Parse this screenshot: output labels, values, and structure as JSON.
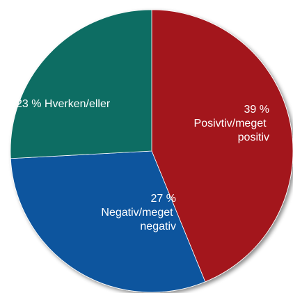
{
  "chart_data": {
    "type": "pie",
    "categories": [
      "Posivtiv/meget positiv",
      "Negativ/meget negativ",
      "Hverken/eller"
    ],
    "values": [
      39,
      27,
      23
    ],
    "value_labels": [
      "39 %",
      "27 %",
      "23 %"
    ],
    "colors": [
      "#a3161f",
      "#0b559e",
      "#0e6d64"
    ]
  }
}
